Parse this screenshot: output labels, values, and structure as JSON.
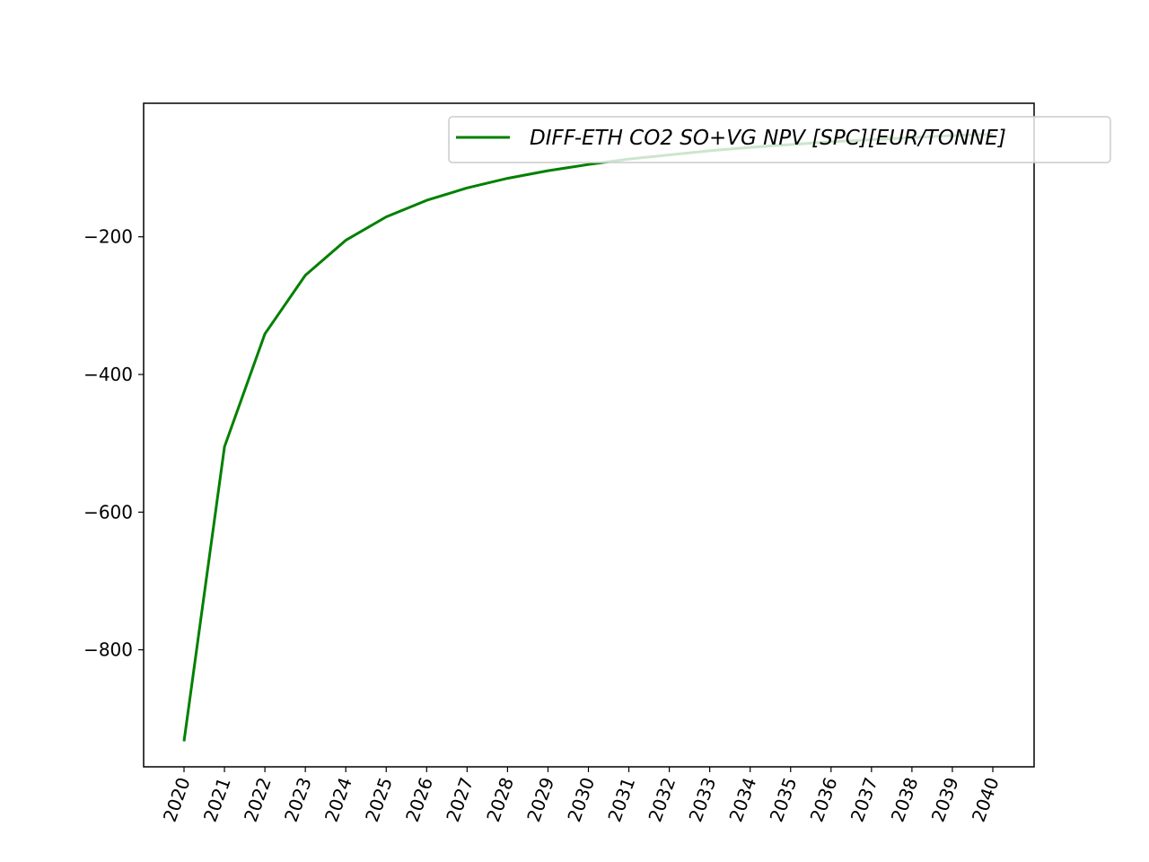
{
  "chart_data": {
    "type": "line",
    "title": "",
    "xlabel": "",
    "ylabel": "",
    "x": [
      "2020",
      "2021",
      "2022",
      "2023",
      "2024",
      "2025",
      "2026",
      "2027",
      "2028",
      "2029",
      "2030",
      "2031",
      "2032",
      "2033",
      "2034",
      "2035",
      "2036",
      "2037",
      "2038",
      "2039",
      "2040"
    ],
    "series": [
      {
        "name": "DIFF-ETH CO2 SO+VG NPV [SPC][EUR/TONNE]",
        "color": "#008000",
        "values": [
          -933,
          -505,
          -341,
          -256,
          -205,
          -171,
          -147,
          -129,
          -115,
          -104,
          -95,
          -87,
          -81,
          -75,
          -70,
          -66,
          -62,
          -59,
          -56,
          -53,
          -51
        ]
      }
    ],
    "yticks": [
      -200,
      -400,
      -600,
      -800
    ],
    "ytick_labels": [
      "−200",
      "−400",
      "−600",
      "−800"
    ],
    "ylim": [
      -970,
      -6
    ],
    "grid": false,
    "legend_position": "top-right"
  }
}
